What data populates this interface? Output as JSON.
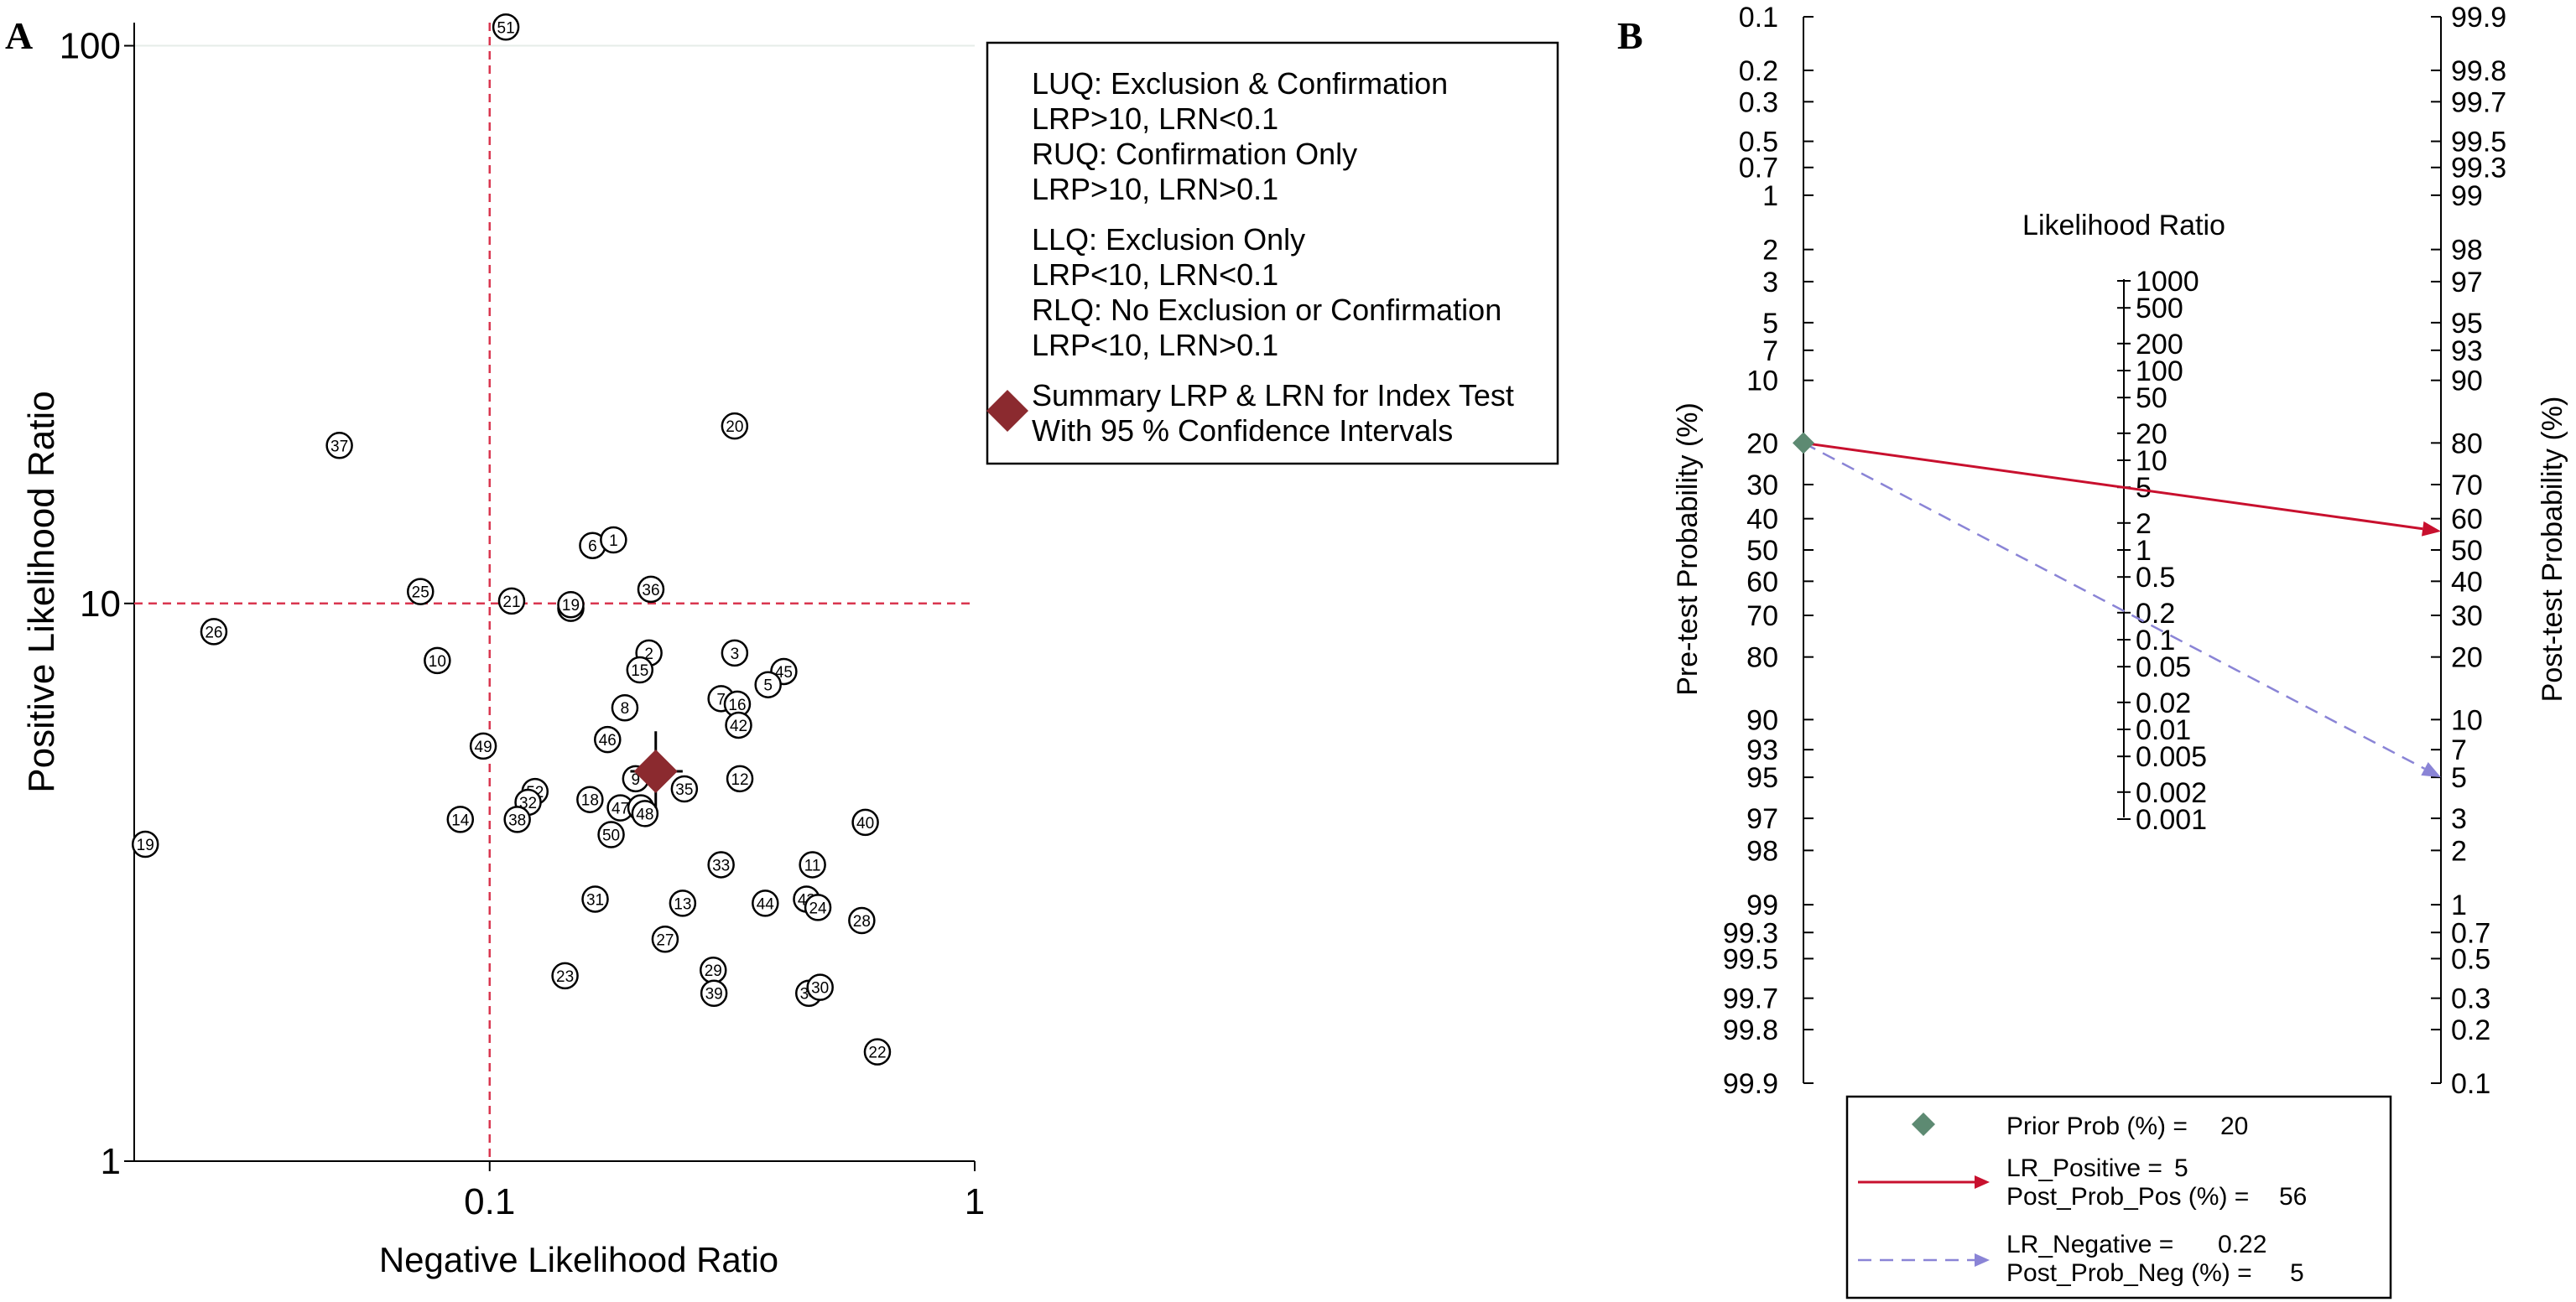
{
  "colors": {
    "refline": "#d9364f",
    "summary": "#8b2a2f",
    "lr_positive": "#c8102e",
    "lr_negative": "#8a84d6",
    "prior": "#5d8a72",
    "grid": "#e6ece8"
  },
  "chart_data": [
    {
      "panel_label": "A",
      "type": "scatter",
      "title": "",
      "xlabel": "Negative Likelihood Ratio",
      "ylabel": "Positive Likelihood Ratio",
      "xscale": "log",
      "yscale": "log",
      "xlim": [
        0.0185,
        1
      ],
      "ylim": [
        1,
        110
      ],
      "xticks": [
        {
          "v": 0.1,
          "label": "0.1"
        },
        {
          "v": 1,
          "label": "1"
        }
      ],
      "yticks": [
        {
          "v": 1,
          "label": "1"
        },
        {
          "v": 10,
          "label": "10"
        },
        {
          "v": 100,
          "label": "100"
        }
      ],
      "reference_lines": {
        "x": 0.1,
        "y": 10
      },
      "summary": {
        "lrn": 0.22,
        "lrp": 5,
        "lrn_ci": [
          0.195,
          0.25
        ],
        "lrp_ci": [
          4.3,
          5.9
        ]
      },
      "legend": {
        "position": "top-right",
        "lines": [
          "LUQ: Exclusion & Confirmation",
          "LRP>10, LRN<0.1",
          "RUQ: Confirmation Only",
          "LRP>10, LRN>0.1",
          "LLQ: Exclusion Only",
          "LRP<10, LRN<0.1",
          "RLQ: No Exclusion or Confirmation",
          "LRP<10, LRN>0.1"
        ],
        "summary_lines": [
          "Summary LRP & LRN for Index Test",
          "With 95 % Confidence Intervals"
        ]
      },
      "points": [
        {
          "id": "51",
          "lrn": 0.108,
          "lrp": 108
        },
        {
          "id": "37",
          "lrn": 0.049,
          "lrp": 19.2
        },
        {
          "id": "20",
          "lrn": 0.32,
          "lrp": 20.8
        },
        {
          "id": "6",
          "lrn": 0.163,
          "lrp": 12.7
        },
        {
          "id": "1",
          "lrn": 0.18,
          "lrp": 13.0
        },
        {
          "id": "25",
          "lrn": 0.072,
          "lrp": 10.5
        },
        {
          "id": "36",
          "lrn": 0.215,
          "lrp": 10.6
        },
        {
          "id": "21",
          "lrn": 0.111,
          "lrp": 10.1
        },
        {
          "id": "17",
          "lrn": 0.147,
          "lrp": 9.8
        },
        {
          "id": "19",
          "lrn": 0.147,
          "lrp": 9.95
        },
        {
          "id": "26",
          "lrn": 0.027,
          "lrp": 8.9
        },
        {
          "id": "10",
          "lrn": 0.078,
          "lrp": 7.9
        },
        {
          "id": "2",
          "lrn": 0.213,
          "lrp": 8.15
        },
        {
          "id": "3",
          "lrn": 0.32,
          "lrp": 8.15
        },
        {
          "id": "15",
          "lrn": 0.204,
          "lrp": 7.6
        },
        {
          "id": "45",
          "lrn": 0.404,
          "lrp": 7.55
        },
        {
          "id": "5",
          "lrn": 0.375,
          "lrp": 7.15
        },
        {
          "id": "7",
          "lrn": 0.3,
          "lrp": 6.75
        },
        {
          "id": "16",
          "lrn": 0.324,
          "lrp": 6.6
        },
        {
          "id": "8",
          "lrn": 0.19,
          "lrp": 6.5
        },
        {
          "id": "42",
          "lrn": 0.326,
          "lrp": 6.05
        },
        {
          "id": "46",
          "lrn": 0.175,
          "lrp": 5.7
        },
        {
          "id": "49",
          "lrn": 0.097,
          "lrp": 5.55
        },
        {
          "id": "9",
          "lrn": 0.2,
          "lrp": 4.85
        },
        {
          "id": "12",
          "lrn": 0.328,
          "lrp": 4.85
        },
        {
          "id": "35",
          "lrn": 0.252,
          "lrp": 4.65
        },
        {
          "id": "52",
          "lrn": 0.124,
          "lrp": 4.6
        },
        {
          "id": "18",
          "lrn": 0.161,
          "lrp": 4.45
        },
        {
          "id": "32",
          "lrn": 0.12,
          "lrp": 4.4
        },
        {
          "id": "47",
          "lrn": 0.186,
          "lrp": 4.3
        },
        {
          "id": "4",
          "lrn": 0.205,
          "lrp": 4.3
        },
        {
          "id": "48",
          "lrn": 0.209,
          "lrp": 4.2
        },
        {
          "id": "38",
          "lrn": 0.114,
          "lrp": 4.1
        },
        {
          "id": "14",
          "lrn": 0.087,
          "lrp": 4.1
        },
        {
          "id": "40",
          "lrn": 0.595,
          "lrp": 4.05
        },
        {
          "id": "50",
          "lrn": 0.178,
          "lrp": 3.85
        },
        {
          "id": "19b",
          "label": "19",
          "lrn": 0.0195,
          "lrp": 3.7
        },
        {
          "id": "33",
          "lrn": 0.3,
          "lrp": 3.4
        },
        {
          "id": "11",
          "lrn": 0.463,
          "lrp": 3.4
        },
        {
          "id": "31",
          "lrn": 0.165,
          "lrp": 2.95
        },
        {
          "id": "13",
          "lrn": 0.25,
          "lrp": 2.9
        },
        {
          "id": "44",
          "lrn": 0.37,
          "lrp": 2.9
        },
        {
          "id": "43",
          "lrn": 0.45,
          "lrp": 2.95
        },
        {
          "id": "24",
          "lrn": 0.475,
          "lrp": 2.85
        },
        {
          "id": "28",
          "lrn": 0.585,
          "lrp": 2.7
        },
        {
          "id": "27",
          "lrn": 0.23,
          "lrp": 2.5
        },
        {
          "id": "29",
          "lrn": 0.289,
          "lrp": 2.2
        },
        {
          "id": "23",
          "lrn": 0.143,
          "lrp": 2.15
        },
        {
          "id": "39",
          "lrn": 0.29,
          "lrp": 2.0
        },
        {
          "id": "34",
          "lrn": 0.455,
          "lrp": 2.0
        },
        {
          "id": "30",
          "lrn": 0.48,
          "lrp": 2.05
        },
        {
          "id": "22",
          "lrn": 0.63,
          "lrp": 1.57
        }
      ]
    },
    {
      "panel_label": "B",
      "type": "nomogram",
      "title": "Likelihood Ratio",
      "left_axis_label": "Pre-test Probability (%)",
      "right_axis_label": "Post-test Probability (%)",
      "pretest_ticks": [
        "0.1",
        "0.2",
        "0.3",
        "0.5",
        "0.7",
        "1",
        "2",
        "3",
        "5",
        "7",
        "10",
        "20",
        "30",
        "40",
        "50",
        "60",
        "70",
        "80",
        "90",
        "93",
        "95",
        "97",
        "98",
        "99",
        "99.3",
        "99.5",
        "99.7",
        "99.8",
        "99.9"
      ],
      "posttest_ticks": [
        "99.9",
        "99.8",
        "99.7",
        "99.5",
        "99.3",
        "99",
        "98",
        "97",
        "95",
        "93",
        "90",
        "80",
        "70",
        "60",
        "50",
        "40",
        "30",
        "20",
        "10",
        "7",
        "5",
        "3",
        "2",
        "1",
        "0.7",
        "0.5",
        "0.3",
        "0.2",
        "0.1"
      ],
      "lr_ticks": [
        "1000",
        "500",
        "200",
        "100",
        "50",
        "20",
        "10",
        "5",
        "2",
        "1",
        "0.5",
        "0.2",
        "0.1",
        "0.05",
        "0.02",
        "0.01",
        "0.005",
        "0.002",
        "0.001"
      ],
      "prior_prob": 20,
      "lr_positive": 5,
      "lr_negative": 0.22,
      "post_prob_pos": 56,
      "post_prob_neg": 5,
      "legend": {
        "prior_label": "Prior Prob (%) =",
        "prior_value": "20",
        "lrp_label": "LR_Positive =",
        "lrp_value": "5",
        "ppp_label": "Post_Prob_Pos (%) =",
        "ppp_value": "56",
        "lrn_label": "LR_Negative =",
        "lrn_value": "0.22",
        "ppn_label": "Post_Prob_Neg (%) =",
        "ppn_value": "5"
      }
    }
  ]
}
